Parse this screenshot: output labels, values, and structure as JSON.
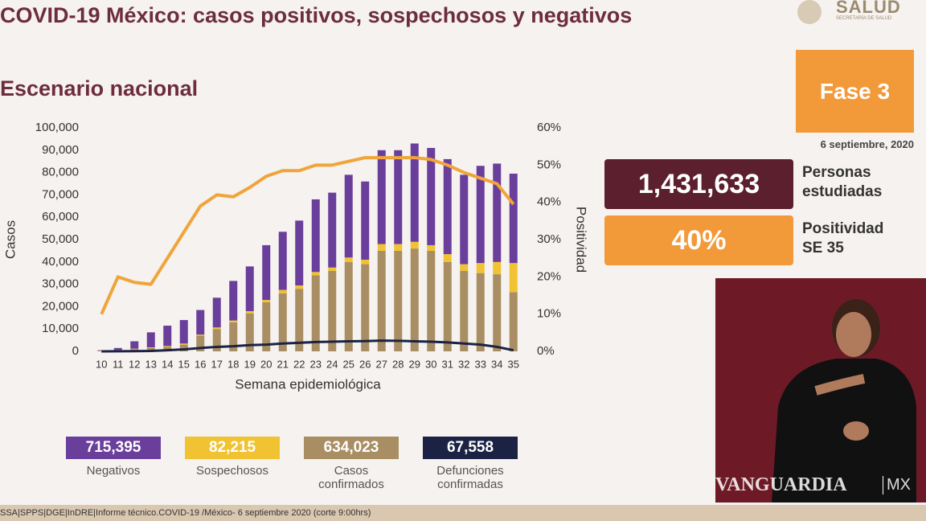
{
  "header": {
    "title": "COVID-19 México: casos positivos, sospechosos y negativos",
    "subtitle": "Escenario nacional",
    "logo": "SALUD",
    "logo_sub": "SECRETARÍA DE SALUD"
  },
  "chart_data": {
    "type": "bar",
    "stacked": true,
    "xlabel": "Semana epidemiológica",
    "ylabel": "Casos",
    "y2label": "Positividad",
    "categories": [
      "10",
      "11",
      "12",
      "13",
      "14",
      "15",
      "16",
      "17",
      "18",
      "19",
      "20",
      "21",
      "22",
      "23",
      "24",
      "25",
      "26",
      "27",
      "28",
      "29",
      "30",
      "31",
      "32",
      "33",
      "34",
      "35"
    ],
    "ylim": [
      0,
      100000
    ],
    "yticks": [
      0,
      {
        "value": 10000,
        "label": "10,000"
      },
      {
        "value": 20000,
        "label": "20,000"
      },
      {
        "value": 30000,
        "label": "30,000"
      },
      {
        "value": 40000,
        "label": "40,000"
      },
      {
        "value": 50000,
        "label": "50,000"
      },
      {
        "value": 60000,
        "label": "60,000"
      },
      {
        "value": 70000,
        "label": "70,000"
      },
      {
        "value": 80000,
        "label": "80,000"
      },
      {
        "value": 90000,
        "label": "90,000"
      },
      {
        "value": 100000,
        "label": "100,000"
      }
    ],
    "y2lim": [
      0,
      60
    ],
    "y2ticks": [
      {
        "value": 0,
        "label": "0%"
      },
      {
        "value": 10,
        "label": "10%"
      },
      {
        "value": 20,
        "label": "20%"
      },
      {
        "value": 30,
        "label": "30%"
      },
      {
        "value": 40,
        "label": "40%"
      },
      {
        "value": 50,
        "label": "50%"
      },
      {
        "value": 60,
        "label": "60%"
      }
    ],
    "grid": false,
    "series": [
      {
        "name": "Negativos",
        "type": "bar",
        "color": "#6a3f9c",
        "total": "715,395",
        "values": [
          200,
          900,
          3300,
          6700,
          9100,
          10500,
          11000,
          13300,
          17700,
          20000,
          24500,
          26000,
          29000,
          32500,
          33500,
          37000,
          35000,
          42000,
          42000,
          44000,
          43500,
          42500,
          40000,
          43500,
          44000,
          40000
        ]
      },
      {
        "name": "Sospechosos",
        "type": "bar",
        "color": "#f1c232",
        "total": "82,215",
        "values": [
          100,
          100,
          200,
          300,
          400,
          500,
          500,
          700,
          800,
          1000,
          1000,
          1500,
          1500,
          1500,
          1500,
          2000,
          2000,
          3000,
          3000,
          3000,
          2500,
          3500,
          3000,
          4500,
          5500,
          13000
        ]
      },
      {
        "name": "Casos confirmados",
        "type": "bar",
        "color": "#a88e62",
        "total": "634,023",
        "values": [
          200,
          500,
          1000,
          1500,
          2000,
          3000,
          7000,
          10000,
          13000,
          17000,
          22000,
          26000,
          28000,
          34000,
          36000,
          40000,
          39000,
          45000,
          45000,
          46000,
          45000,
          40000,
          36000,
          35000,
          34500,
          26500
        ]
      },
      {
        "name": "Defunciones confirmadas",
        "type": "line",
        "color": "#1b2244",
        "total": "67,558",
        "values": [
          0,
          50,
          100,
          200,
          500,
          900,
          1500,
          2000,
          2300,
          2800,
          3000,
          3500,
          3800,
          4200,
          4300,
          4500,
          4600,
          4800,
          4700,
          4500,
          4300,
          4000,
          3500,
          3000,
          2000,
          500
        ]
      },
      {
        "type": "line",
        "axis": "y2",
        "color": "#f0a43a",
        "values": [
          10,
          20,
          18.5,
          18,
          25,
          32,
          39,
          42,
          41.5,
          44,
          47,
          48.5,
          48.5,
          50,
          50,
          51,
          52,
          52,
          52,
          52,
          51.5,
          50,
          48,
          46.5,
          45,
          39.5
        ]
      }
    ]
  },
  "panel": {
    "phase": "Fase 3",
    "date": "6 septiembre, 2020",
    "indicators": [
      {
        "value": "1,431,633",
        "lines": [
          "Personas",
          "estudiadas"
        ]
      },
      {
        "value": "40%",
        "lines": [
          "Positividad",
          "SE 35"
        ]
      }
    ]
  },
  "watermark": {
    "brand": "VANGUARDIA",
    "country": "MX"
  },
  "footer": "SSA|SPPS|DGE|InDRE|Informe técnico.COVID-19 /México- 6 septiembre 2020 (corte 9:00hrs)"
}
